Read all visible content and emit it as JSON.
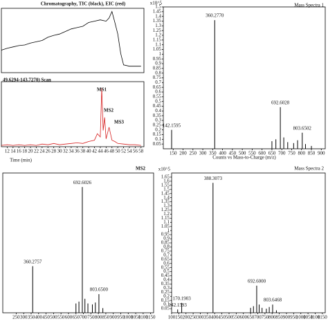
{
  "chart_data": [
    {
      "type": "line",
      "title": "Chromatography, TIC (black), EIC (red)",
      "color": "#000000",
      "x": [
        10,
        12,
        14,
        16,
        18,
        20,
        22,
        24,
        26,
        28,
        30,
        32,
        34,
        36,
        38,
        40,
        42,
        44,
        46,
        47,
        48,
        49,
        50,
        51,
        52,
        54,
        56,
        58
      ],
      "values": [
        0.35,
        0.38,
        0.4,
        0.42,
        0.43,
        0.46,
        0.48,
        0.5,
        0.55,
        0.58,
        0.6,
        0.64,
        0.68,
        0.7,
        0.72,
        0.78,
        0.8,
        0.82,
        0.8,
        0.85,
        0.95,
        0.78,
        0.6,
        0.3,
        0.12,
        0.1,
        0.1,
        0.1
      ],
      "xlim": [
        10,
        59
      ],
      "ylim": [
        0,
        1
      ]
    },
    {
      "type": "line",
      "title": "49.6294-143.7270) Scan",
      "color": "#d62020",
      "x_label": "Time (min)",
      "x": [
        10,
        12,
        14,
        16,
        18,
        20,
        22,
        24,
        26,
        28,
        30,
        32,
        34,
        36,
        38,
        40,
        42,
        43,
        44,
        44.5,
        45,
        45.5,
        46,
        47,
        48,
        49,
        50,
        52,
        54,
        56,
        58
      ],
      "values": [
        0.02,
        0.03,
        0.02,
        0.03,
        0.02,
        0.03,
        0.02,
        0.04,
        0.03,
        0.05,
        0.03,
        0.04,
        0.05,
        0.06,
        0.05,
        0.08,
        0.1,
        0.2,
        0.15,
        0.9,
        0.25,
        0.45,
        0.12,
        0.3,
        0.1,
        0.08,
        0.05,
        0.04,
        0.03,
        0.03,
        0.02
      ],
      "annotations": [
        "MS1",
        "MS2",
        "MS3"
      ],
      "xlim": [
        10,
        59
      ],
      "ylim": [
        0,
        1
      ],
      "xticks": [
        12,
        14,
        16,
        18,
        20,
        22,
        24,
        26,
        28,
        30,
        32,
        34,
        36,
        38,
        40,
        42,
        44,
        46,
        48,
        50,
        52,
        54,
        56,
        58
      ]
    },
    {
      "type": "stick",
      "title": "Mass Spectra 1",
      "multiplier": "x10^5",
      "x_label": "Counts vs Mass-to-Charge (m/z)",
      "color": "#000000",
      "x": [
        142.1595,
        360.277,
        692.6028,
        803.6502,
        650,
        670,
        710,
        730,
        760,
        780,
        820,
        850
      ],
      "x_labels": [
        "142.1595",
        "360.2770",
        "692.6028",
        "803.6502",
        null,
        null,
        null,
        null,
        null,
        null,
        null,
        null
      ],
      "values": [
        0.2,
        1.36,
        0.44,
        0.17,
        0.08,
        0.1,
        0.12,
        0.07,
        0.06,
        0.09,
        0.05,
        0.03
      ],
      "xlim": [
        100,
        920
      ],
      "ylim": [
        0,
        1.5
      ],
      "xticks": [
        150,
        200,
        250,
        300,
        350,
        400,
        450,
        500,
        550,
        600,
        650,
        700,
        750,
        800,
        850,
        900
      ],
      "yticks": [
        0.05,
        0.1,
        0.15,
        0.2,
        0.25,
        0.3,
        0.35,
        0.4,
        0.45,
        0.5,
        0.55,
        0.6,
        0.65,
        0.7,
        0.75,
        0.8,
        0.85,
        0.9,
        0.95,
        1,
        1.05,
        1.1,
        1.15,
        1.2,
        1.25,
        1.3,
        1.35,
        1.4,
        1.45,
        1.5
      ]
    },
    {
      "type": "stick",
      "title": "MS2",
      "color": "#000000",
      "x": [
        360.2757,
        692.6026,
        803.65,
        650,
        670,
        710,
        730,
        760,
        780,
        830
      ],
      "x_labels": [
        "360.2757",
        "692.6026",
        "803.6500",
        null,
        null,
        null,
        null,
        null,
        null,
        null
      ],
      "values": [
        0.5,
        1.35,
        0.2,
        0.1,
        0.12,
        0.15,
        0.1,
        0.09,
        0.11,
        0.05
      ],
      "xlim": [
        160,
        1170
      ],
      "ylim": [
        0,
        1.5
      ],
      "xticks": [
        250,
        300,
        350,
        400,
        450,
        500,
        550,
        600,
        650,
        700,
        750,
        800,
        850,
        900,
        950,
        1000,
        1050,
        1100,
        1150
      ]
    },
    {
      "type": "stick",
      "title": "Mass Spectra 2",
      "multiplier": "x10^5",
      "color": "#000000",
      "x": [
        142.1593,
        170.1903,
        388.3073,
        692.6,
        803.6468,
        650,
        670,
        710,
        730,
        760,
        780,
        830
      ],
      "x_labels": [
        "142.1593",
        "170.1903",
        "388.3073",
        "692.6000",
        "803.6468",
        null,
        null,
        null,
        null,
        null,
        null,
        null
      ],
      "values": [
        0.04,
        0.12,
        1.58,
        0.33,
        0.1,
        0.06,
        0.08,
        0.1,
        0.06,
        0.05,
        0.07,
        0.03
      ],
      "xlim": [
        100,
        1170
      ],
      "ylim": [
        0,
        1.7
      ],
      "xticks": [
        100,
        150,
        200,
        250,
        300,
        350,
        400,
        450,
        500,
        550,
        600,
        650,
        700,
        750,
        800,
        850,
        900,
        950,
        1000,
        1050,
        1100,
        1150
      ],
      "yticks": [
        0.05,
        0.1,
        0.15,
        0.2,
        0.25,
        0.3,
        0.35,
        0.4,
        0.45,
        0.5,
        0.55,
        0.6,
        0.65,
        0.7,
        0.75,
        0.8,
        0.85,
        0.9,
        0.95,
        1,
        1.05,
        1.1,
        1.15,
        1.2,
        1.25,
        1.3,
        1.35,
        1.4,
        1.45,
        1.5,
        1.55,
        1.6,
        1.65
      ]
    }
  ]
}
